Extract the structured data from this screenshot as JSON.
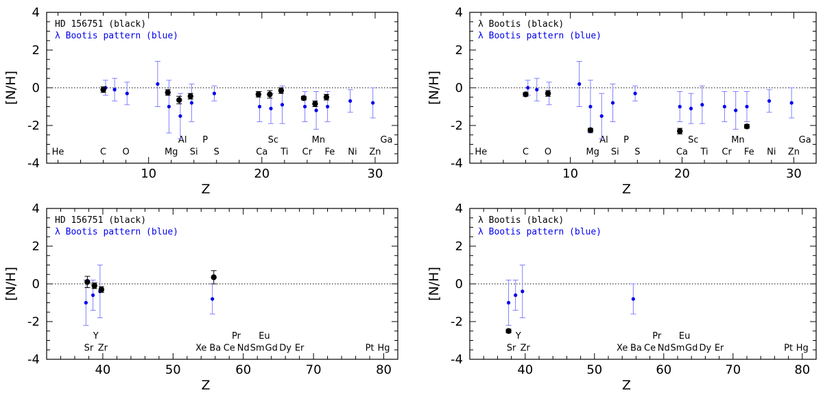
{
  "figure": {
    "xlabel": "Z",
    "ylabel": "[N/H]"
  },
  "chart_data": [
    {
      "type": "scatter",
      "id": "top-left",
      "legend": [
        "HD 156751 (black)",
        "λ Bootis pattern (blue)"
      ],
      "xlabel": "Z",
      "ylabel": "[N/H]",
      "xlim": [
        1,
        32
      ],
      "ylim": [
        -4,
        4
      ],
      "xticks": [
        10,
        20,
        30
      ],
      "yticks": [
        4,
        2,
        0,
        -2,
        -4
      ],
      "element_labels": [
        {
          "text": "He",
          "z": 2,
          "row": "low"
        },
        {
          "text": "C",
          "z": 6,
          "row": "low"
        },
        {
          "text": "O",
          "z": 8,
          "row": "low"
        },
        {
          "text": "Mg",
          "z": 12,
          "row": "low"
        },
        {
          "text": "Al",
          "z": 13,
          "row": "high"
        },
        {
          "text": "Si",
          "z": 14,
          "row": "low"
        },
        {
          "text": "P",
          "z": 15,
          "row": "high"
        },
        {
          "text": "S",
          "z": 16,
          "row": "low"
        },
        {
          "text": "Ca",
          "z": 20,
          "row": "low"
        },
        {
          "text": "Sc",
          "z": 21,
          "row": "high"
        },
        {
          "text": "Ti",
          "z": 22,
          "row": "low"
        },
        {
          "text": "Cr",
          "z": 24,
          "row": "low"
        },
        {
          "text": "Mn",
          "z": 25,
          "row": "high"
        },
        {
          "text": "Fe",
          "z": 26,
          "row": "low"
        },
        {
          "text": "Ni",
          "z": 28,
          "row": "low"
        },
        {
          "text": "Zn",
          "z": 30,
          "row": "low"
        },
        {
          "text": "Ga",
          "z": 31,
          "row": "high"
        }
      ],
      "series": [
        {
          "name": "λ Bootis pattern",
          "color": "#0000ee",
          "points": [
            {
              "x": 6.2,
              "y": 0.0,
              "err": 0.4
            },
            {
              "x": 7.0,
              "y": -0.1,
              "err": 0.6
            },
            {
              "x": 8.1,
              "y": -0.3,
              "err": 0.6
            },
            {
              "x": 10.8,
              "y": 0.2,
              "err": 1.2
            },
            {
              "x": 11.8,
              "y": -1.0,
              "err": 1.4
            },
            {
              "x": 12.8,
              "y": -1.5,
              "err": 1.2
            },
            {
              "x": 13.8,
              "y": -0.8,
              "err": 1.0
            },
            {
              "x": 15.8,
              "y": -0.3,
              "err": 0.4
            },
            {
              "x": 19.8,
              "y": -1.0,
              "err": 0.8
            },
            {
              "x": 20.8,
              "y": -1.1,
              "err": 0.8
            },
            {
              "x": 21.8,
              "y": -0.9,
              "err": 1.0
            },
            {
              "x": 23.8,
              "y": -1.0,
              "err": 0.8
            },
            {
              "x": 24.8,
              "y": -1.2,
              "err": 1.0
            },
            {
              "x": 25.8,
              "y": -1.0,
              "err": 0.8
            },
            {
              "x": 27.8,
              "y": -0.7,
              "err": 0.6
            },
            {
              "x": 29.8,
              "y": -0.8,
              "err": 0.8
            }
          ]
        },
        {
          "name": "HD 156751",
          "color": "#000000",
          "points": [
            {
              "x": 6.0,
              "y": -0.1,
              "err": 0.15
            },
            {
              "x": 11.7,
              "y": -0.25,
              "err": 0.15
            },
            {
              "x": 12.7,
              "y": -0.65,
              "err": 0.2
            },
            {
              "x": 13.7,
              "y": -0.45,
              "err": 0.15
            },
            {
              "x": 19.7,
              "y": -0.35,
              "err": 0.15
            },
            {
              "x": 20.7,
              "y": -0.35,
              "err": 0.2
            },
            {
              "x": 21.7,
              "y": -0.15,
              "err": 0.15
            },
            {
              "x": 23.7,
              "y": -0.55,
              "err": 0.1
            },
            {
              "x": 24.7,
              "y": -0.85,
              "err": 0.15
            },
            {
              "x": 25.7,
              "y": -0.5,
              "err": 0.15
            }
          ]
        }
      ]
    },
    {
      "type": "scatter",
      "id": "top-right",
      "legend": [
        "λ Bootis (black)",
        "λ Bootis pattern (blue)"
      ],
      "xlabel": "Z",
      "ylabel": "[N/H]",
      "xlim": [
        1,
        32
      ],
      "ylim": [
        -4,
        4
      ],
      "xticks": [
        10,
        20,
        30
      ],
      "yticks": [
        4,
        2,
        0,
        -2,
        -4
      ],
      "element_labels": [
        {
          "text": "He",
          "z": 2,
          "row": "low"
        },
        {
          "text": "C",
          "z": 6,
          "row": "low"
        },
        {
          "text": "O",
          "z": 8,
          "row": "low"
        },
        {
          "text": "Mg",
          "z": 12,
          "row": "low"
        },
        {
          "text": "Al",
          "z": 13,
          "row": "high"
        },
        {
          "text": "Si",
          "z": 14,
          "row": "low"
        },
        {
          "text": "P",
          "z": 15,
          "row": "high"
        },
        {
          "text": "S",
          "z": 16,
          "row": "low"
        },
        {
          "text": "Ca",
          "z": 20,
          "row": "low"
        },
        {
          "text": "Sc",
          "z": 21,
          "row": "high"
        },
        {
          "text": "Ti",
          "z": 22,
          "row": "low"
        },
        {
          "text": "Cr",
          "z": 24,
          "row": "low"
        },
        {
          "text": "Mn",
          "z": 25,
          "row": "high"
        },
        {
          "text": "Fe",
          "z": 26,
          "row": "low"
        },
        {
          "text": "Ni",
          "z": 28,
          "row": "low"
        },
        {
          "text": "Zn",
          "z": 30,
          "row": "low"
        },
        {
          "text": "Ga",
          "z": 31,
          "row": "high"
        }
      ],
      "series": [
        {
          "name": "λ Bootis pattern",
          "color": "#0000ee",
          "points": [
            {
              "x": 6.2,
              "y": 0.0,
              "err": 0.4
            },
            {
              "x": 7.0,
              "y": -0.1,
              "err": 0.6
            },
            {
              "x": 8.1,
              "y": -0.3,
              "err": 0.6
            },
            {
              "x": 10.8,
              "y": 0.2,
              "err": 1.2
            },
            {
              "x": 11.8,
              "y": -1.0,
              "err": 1.4
            },
            {
              "x": 12.8,
              "y": -1.5,
              "err": 1.2
            },
            {
              "x": 13.8,
              "y": -0.8,
              "err": 1.0
            },
            {
              "x": 15.8,
              "y": -0.3,
              "err": 0.4
            },
            {
              "x": 19.8,
              "y": -1.0,
              "err": 0.8
            },
            {
              "x": 20.8,
              "y": -1.1,
              "err": 0.8
            },
            {
              "x": 21.8,
              "y": -0.9,
              "err": 1.0
            },
            {
              "x": 23.8,
              "y": -1.0,
              "err": 0.8
            },
            {
              "x": 24.8,
              "y": -1.2,
              "err": 1.0
            },
            {
              "x": 25.8,
              "y": -1.0,
              "err": 0.8
            },
            {
              "x": 27.8,
              "y": -0.7,
              "err": 0.6
            },
            {
              "x": 29.8,
              "y": -0.8,
              "err": 0.8
            }
          ]
        },
        {
          "name": "λ Bootis",
          "color": "#000000",
          "points": [
            {
              "x": 6.0,
              "y": -0.35,
              "err": 0.1
            },
            {
              "x": 8.0,
              "y": -0.3,
              "err": 0.15
            },
            {
              "x": 11.8,
              "y": -2.25,
              "err": 0.1
            },
            {
              "x": 19.8,
              "y": -2.3,
              "err": 0.15
            },
            {
              "x": 25.8,
              "y": -2.05,
              "err": 0.1
            }
          ]
        }
      ]
    },
    {
      "type": "scatter",
      "id": "bottom-left",
      "legend": [
        "HD 156751 (black)",
        "λ Bootis pattern (blue)"
      ],
      "xlabel": "Z",
      "ylabel": "[N/H]",
      "xlim": [
        32,
        82
      ],
      "ylim": [
        -4,
        4
      ],
      "xticks": [
        40,
        50,
        60,
        70,
        80
      ],
      "yticks": [
        4,
        2,
        0,
        -2,
        -4
      ],
      "element_labels": [
        {
          "text": "Sr",
          "z": 38,
          "row": "low"
        },
        {
          "text": "Y",
          "z": 39,
          "row": "high"
        },
        {
          "text": "Zr",
          "z": 40,
          "row": "low"
        },
        {
          "text": "Xe",
          "z": 54,
          "row": "low"
        },
        {
          "text": "Ba",
          "z": 56,
          "row": "low"
        },
        {
          "text": "Ce",
          "z": 58,
          "row": "low"
        },
        {
          "text": "Pr",
          "z": 59,
          "row": "high"
        },
        {
          "text": "Nd",
          "z": 60,
          "row": "low"
        },
        {
          "text": "Sm",
          "z": 62,
          "row": "low"
        },
        {
          "text": "Eu",
          "z": 63,
          "row": "high"
        },
        {
          "text": "Gd",
          "z": 64,
          "row": "low"
        },
        {
          "text": "Dy",
          "z": 66,
          "row": "low"
        },
        {
          "text": "Er",
          "z": 68,
          "row": "low"
        },
        {
          "text": "Pt",
          "z": 78,
          "row": "low"
        },
        {
          "text": "Hg",
          "z": 80,
          "row": "low"
        }
      ],
      "series": [
        {
          "name": "λ Bootis pattern",
          "color": "#0000ee",
          "points": [
            {
              "x": 37.6,
              "y": -1.0,
              "err": 1.2
            },
            {
              "x": 38.6,
              "y": -0.6,
              "err": 0.8
            },
            {
              "x": 39.6,
              "y": -0.4,
              "err": 1.4
            },
            {
              "x": 55.6,
              "y": -0.8,
              "err": 0.8
            }
          ]
        },
        {
          "name": "HD 156751",
          "color": "#000000",
          "points": [
            {
              "x": 37.8,
              "y": 0.1,
              "err": 0.3
            },
            {
              "x": 38.8,
              "y": -0.1,
              "err": 0.15
            },
            {
              "x": 39.8,
              "y": -0.3,
              "err": 0.15
            },
            {
              "x": 55.8,
              "y": 0.35,
              "err": 0.35
            }
          ]
        }
      ]
    },
    {
      "type": "scatter",
      "id": "bottom-right",
      "legend": [
        "λ Bootis (black)",
        "λ Bootis pattern (blue)"
      ],
      "xlabel": "Z",
      "ylabel": "[N/H]",
      "xlim": [
        32,
        82
      ],
      "ylim": [
        -4,
        4
      ],
      "xticks": [
        40,
        50,
        60,
        70,
        80
      ],
      "yticks": [
        4,
        2,
        0,
        -2,
        -4
      ],
      "element_labels": [
        {
          "text": "Sr",
          "z": 38,
          "row": "low"
        },
        {
          "text": "Y",
          "z": 39,
          "row": "high"
        },
        {
          "text": "Zr",
          "z": 40,
          "row": "low"
        },
        {
          "text": "Xe",
          "z": 54,
          "row": "low"
        },
        {
          "text": "Ba",
          "z": 56,
          "row": "low"
        },
        {
          "text": "Ce",
          "z": 58,
          "row": "low"
        },
        {
          "text": "Pr",
          "z": 59,
          "row": "high"
        },
        {
          "text": "Nd",
          "z": 60,
          "row": "low"
        },
        {
          "text": "Sm",
          "z": 62,
          "row": "low"
        },
        {
          "text": "Eu",
          "z": 63,
          "row": "high"
        },
        {
          "text": "Gd",
          "z": 64,
          "row": "low"
        },
        {
          "text": "Dy",
          "z": 66,
          "row": "low"
        },
        {
          "text": "Er",
          "z": 68,
          "row": "low"
        },
        {
          "text": "Pt",
          "z": 78,
          "row": "low"
        },
        {
          "text": "Hg",
          "z": 80,
          "row": "low"
        }
      ],
      "series": [
        {
          "name": "λ Bootis pattern",
          "color": "#0000ee",
          "points": [
            {
              "x": 37.6,
              "y": -1.0,
              "err": 1.2
            },
            {
              "x": 38.6,
              "y": -0.6,
              "err": 0.8
            },
            {
              "x": 39.6,
              "y": -0.4,
              "err": 1.4
            },
            {
              "x": 55.6,
              "y": -0.8,
              "err": 0.8
            }
          ]
        },
        {
          "name": "λ Bootis",
          "color": "#000000",
          "points": [
            {
              "x": 37.6,
              "y": -2.5,
              "err": 0.1
            }
          ]
        }
      ]
    }
  ]
}
